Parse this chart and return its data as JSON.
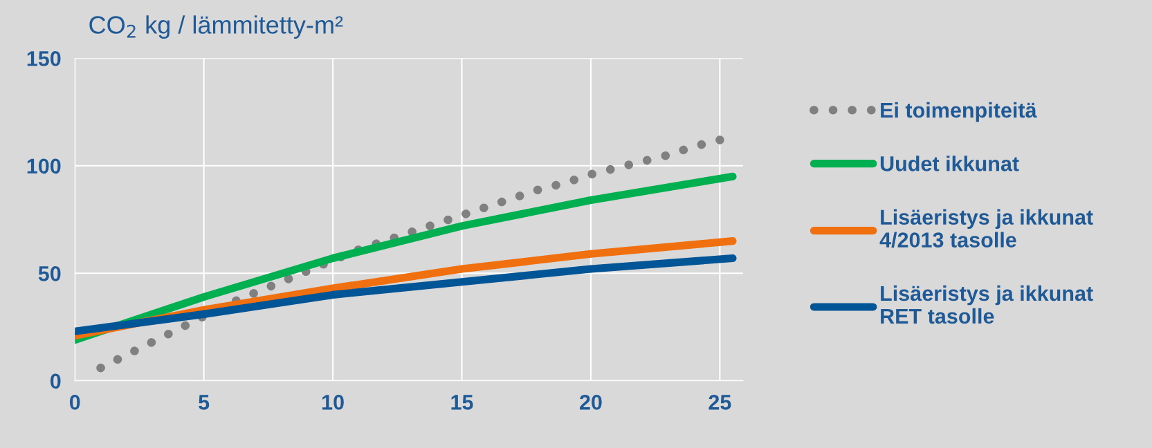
{
  "chart_data": {
    "type": "line",
    "title": "CO$_{2}$ kg / lämmitetty-m²",
    "xlim": [
      0,
      25.9
    ],
    "xticks": [
      0,
      5,
      10,
      15,
      20,
      25
    ],
    "ylim": [
      0,
      150
    ],
    "yticks": [
      0,
      50,
      100,
      150
    ],
    "grid": true,
    "legend": "right",
    "series": [
      {
        "name": "Ei toimenpiteitä",
        "color": "#808080",
        "line_style": "dotted",
        "x": [
          1,
          2,
          3,
          4,
          5,
          6,
          7,
          8,
          9,
          10,
          11,
          12,
          13,
          14,
          15,
          16,
          17,
          18,
          19,
          20,
          21,
          22,
          23,
          24,
          25
        ],
        "values": [
          6,
          12,
          18,
          24,
          30,
          36,
          41,
          46,
          51,
          56,
          61,
          65,
          69,
          73,
          77,
          81,
          85,
          89,
          92,
          96,
          99,
          102,
          105,
          109,
          112
        ]
      },
      {
        "name": "Uudet ikkunat",
        "color": "#00b050",
        "line_style": "solid",
        "x": [
          0,
          5,
          10,
          15,
          20,
          25.5
        ],
        "values": [
          19,
          39,
          57,
          72,
          84,
          95
        ]
      },
      {
        "name": "Lisäeristys ja ikkunat\n4/2013 tasolle",
        "color": "#f07010",
        "line_style": "solid",
        "x": [
          0,
          5,
          10,
          15,
          20,
          25.5
        ],
        "values": [
          21,
          33,
          43,
          52,
          59,
          65
        ]
      },
      {
        "name": "Lisäeristys ja ikkunat\nRET tasolle",
        "color": "#005596",
        "line_style": "solid",
        "x": [
          0,
          5,
          10,
          15,
          20,
          25.5
        ],
        "values": [
          23,
          31,
          40,
          46,
          52,
          57
        ]
      }
    ]
  }
}
